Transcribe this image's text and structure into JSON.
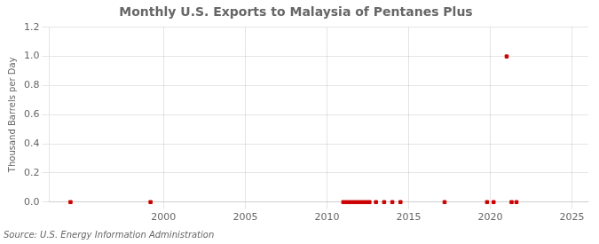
{
  "chart_data": {
    "type": "scatter",
    "title": "Monthly U.S. Exports to Malaysia of Pentanes Plus",
    "ylabel": "Thousand Barrels per Day",
    "annotation": "Source: U.S. Energy Information Administration",
    "x": [
      1994.3,
      1999.2,
      2011.0,
      2011.2,
      2011.4,
      2011.6,
      2011.8,
      2012.0,
      2012.2,
      2012.4,
      2012.6,
      2013.0,
      2013.5,
      2014.0,
      2014.5,
      2017.2,
      2019.8,
      2020.2,
      2021.0,
      2021.3,
      2021.6
    ],
    "values": [
      0.0,
      0.0,
      0.0,
      0.0,
      0.0,
      0.0,
      0.0,
      0.0,
      0.0,
      0.0,
      0.0,
      0.0,
      0.0,
      0.0,
      0.0,
      0.0,
      0.0,
      0.0,
      1.0,
      0.0,
      0.0
    ],
    "color": "#cc0000",
    "marker": "square",
    "xlim": [
      1993,
      2026
    ],
    "xticks": [
      2000,
      2005,
      2010,
      2015,
      2020,
      2025
    ],
    "ylim": [
      0,
      1.2
    ],
    "yticks": [
      {
        "value": 0,
        "label": "0.0"
      },
      0.2,
      0.4,
      0.6,
      0.8,
      {
        "value": 1,
        "label": "1.0"
      },
      1.2
    ],
    "grid": true
  }
}
